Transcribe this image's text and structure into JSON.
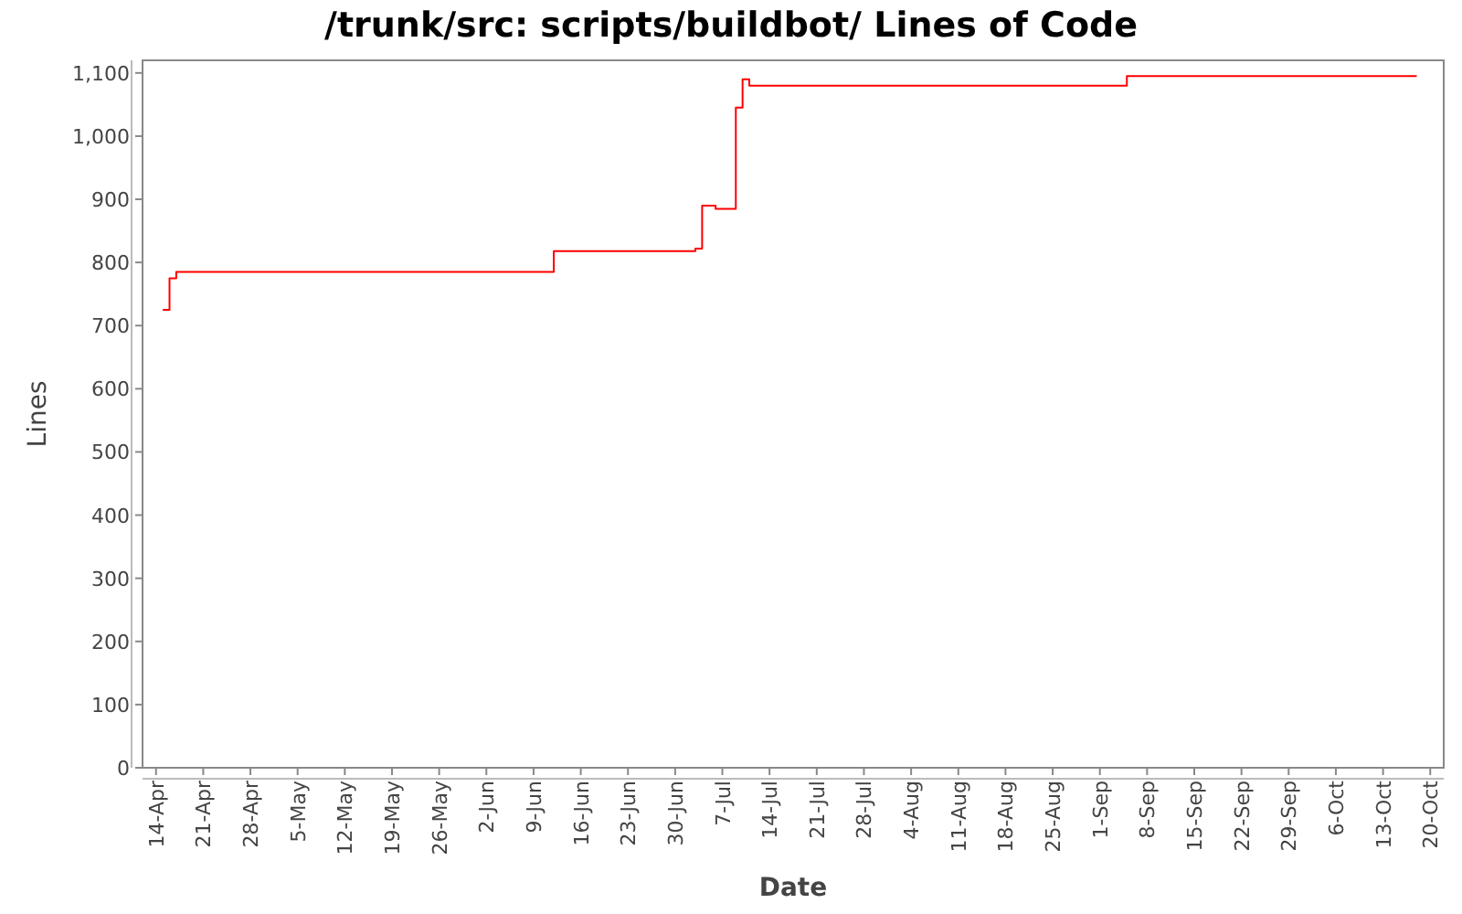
{
  "chart_data": {
    "type": "step",
    "title": "/trunk/src: scripts/buildbot/ Lines of Code",
    "xlabel": "Date",
    "ylabel": "Lines",
    "x": [
      "--04-15",
      "--04-16",
      "--04-17",
      "--06-12",
      "--07-03",
      "--07-04",
      "--07-06",
      "--07-09",
      "--07-10",
      "--07-11",
      "--09-05",
      "--10-18"
    ],
    "series": [
      {
        "color": "#ff0000",
        "values": [
          725,
          775,
          785,
          818,
          822,
          890,
          885,
          1045,
          1090,
          1080,
          1095,
          1095
        ]
      }
    ],
    "xlim": [
      "--04-12",
      "--10-22"
    ],
    "xticks": [
      {
        "value": "--04-14",
        "label": "14-Apr"
      },
      {
        "value": "--04-21",
        "label": "21-Apr"
      },
      {
        "value": "--04-28",
        "label": "28-Apr"
      },
      {
        "value": "--05-05",
        "label": "5-May"
      },
      {
        "value": "--05-12",
        "label": "12-May"
      },
      {
        "value": "--05-19",
        "label": "19-May"
      },
      {
        "value": "--05-26",
        "label": "26-May"
      },
      {
        "value": "--06-02",
        "label": "2-Jun"
      },
      {
        "value": "--06-09",
        "label": "9-Jun"
      },
      {
        "value": "--06-16",
        "label": "16-Jun"
      },
      {
        "value": "--06-23",
        "label": "23-Jun"
      },
      {
        "value": "--06-30",
        "label": "30-Jun"
      },
      {
        "value": "--07-07",
        "label": "7-Jul"
      },
      {
        "value": "--07-14",
        "label": "14-Jul"
      },
      {
        "value": "--07-21",
        "label": "21-Jul"
      },
      {
        "value": "--07-28",
        "label": "28-Jul"
      },
      {
        "value": "--08-04",
        "label": "4-Aug"
      },
      {
        "value": "--08-11",
        "label": "11-Aug"
      },
      {
        "value": "--08-18",
        "label": "18-Aug"
      },
      {
        "value": "--08-25",
        "label": "25-Aug"
      },
      {
        "value": "--09-01",
        "label": "1-Sep"
      },
      {
        "value": "--09-08",
        "label": "8-Sep"
      },
      {
        "value": "--09-15",
        "label": "15-Sep"
      },
      {
        "value": "--09-22",
        "label": "22-Sep"
      },
      {
        "value": "--09-29",
        "label": "29-Sep"
      },
      {
        "value": "--10-06",
        "label": "6-Oct"
      },
      {
        "value": "--10-13",
        "label": "13-Oct"
      },
      {
        "value": "--10-20",
        "label": "20-Oct"
      }
    ],
    "ylim": [
      0,
      1120
    ],
    "yticks": [
      0,
      100,
      200,
      300,
      400,
      500,
      600,
      700,
      800,
      900,
      {
        "value": 1000,
        "label": "1,000"
      },
      {
        "value": 1100,
        "label": "1,100"
      }
    ]
  }
}
